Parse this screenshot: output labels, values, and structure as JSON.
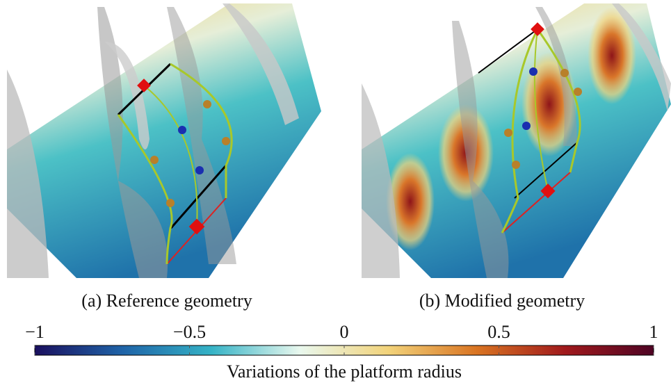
{
  "panels": [
    {
      "caption": "(a) Reference geometry"
    },
    {
      "caption": "(b) Modified geometry"
    }
  ],
  "colorbar": {
    "lim": [
      -1,
      1
    ],
    "ticks": [
      {
        "value": -1,
        "label": "−1"
      },
      {
        "value": -0.5,
        "label": "−0.5"
      },
      0,
      0.5,
      1
    ],
    "colors": [
      "#1a0f5e",
      "#1f64a8",
      "#35b3c6",
      "#e9f8ee",
      "#f2d37a",
      "#d97422",
      "#a0191c",
      "#4e0424"
    ],
    "label": "Variations of the platform radius"
  }
}
